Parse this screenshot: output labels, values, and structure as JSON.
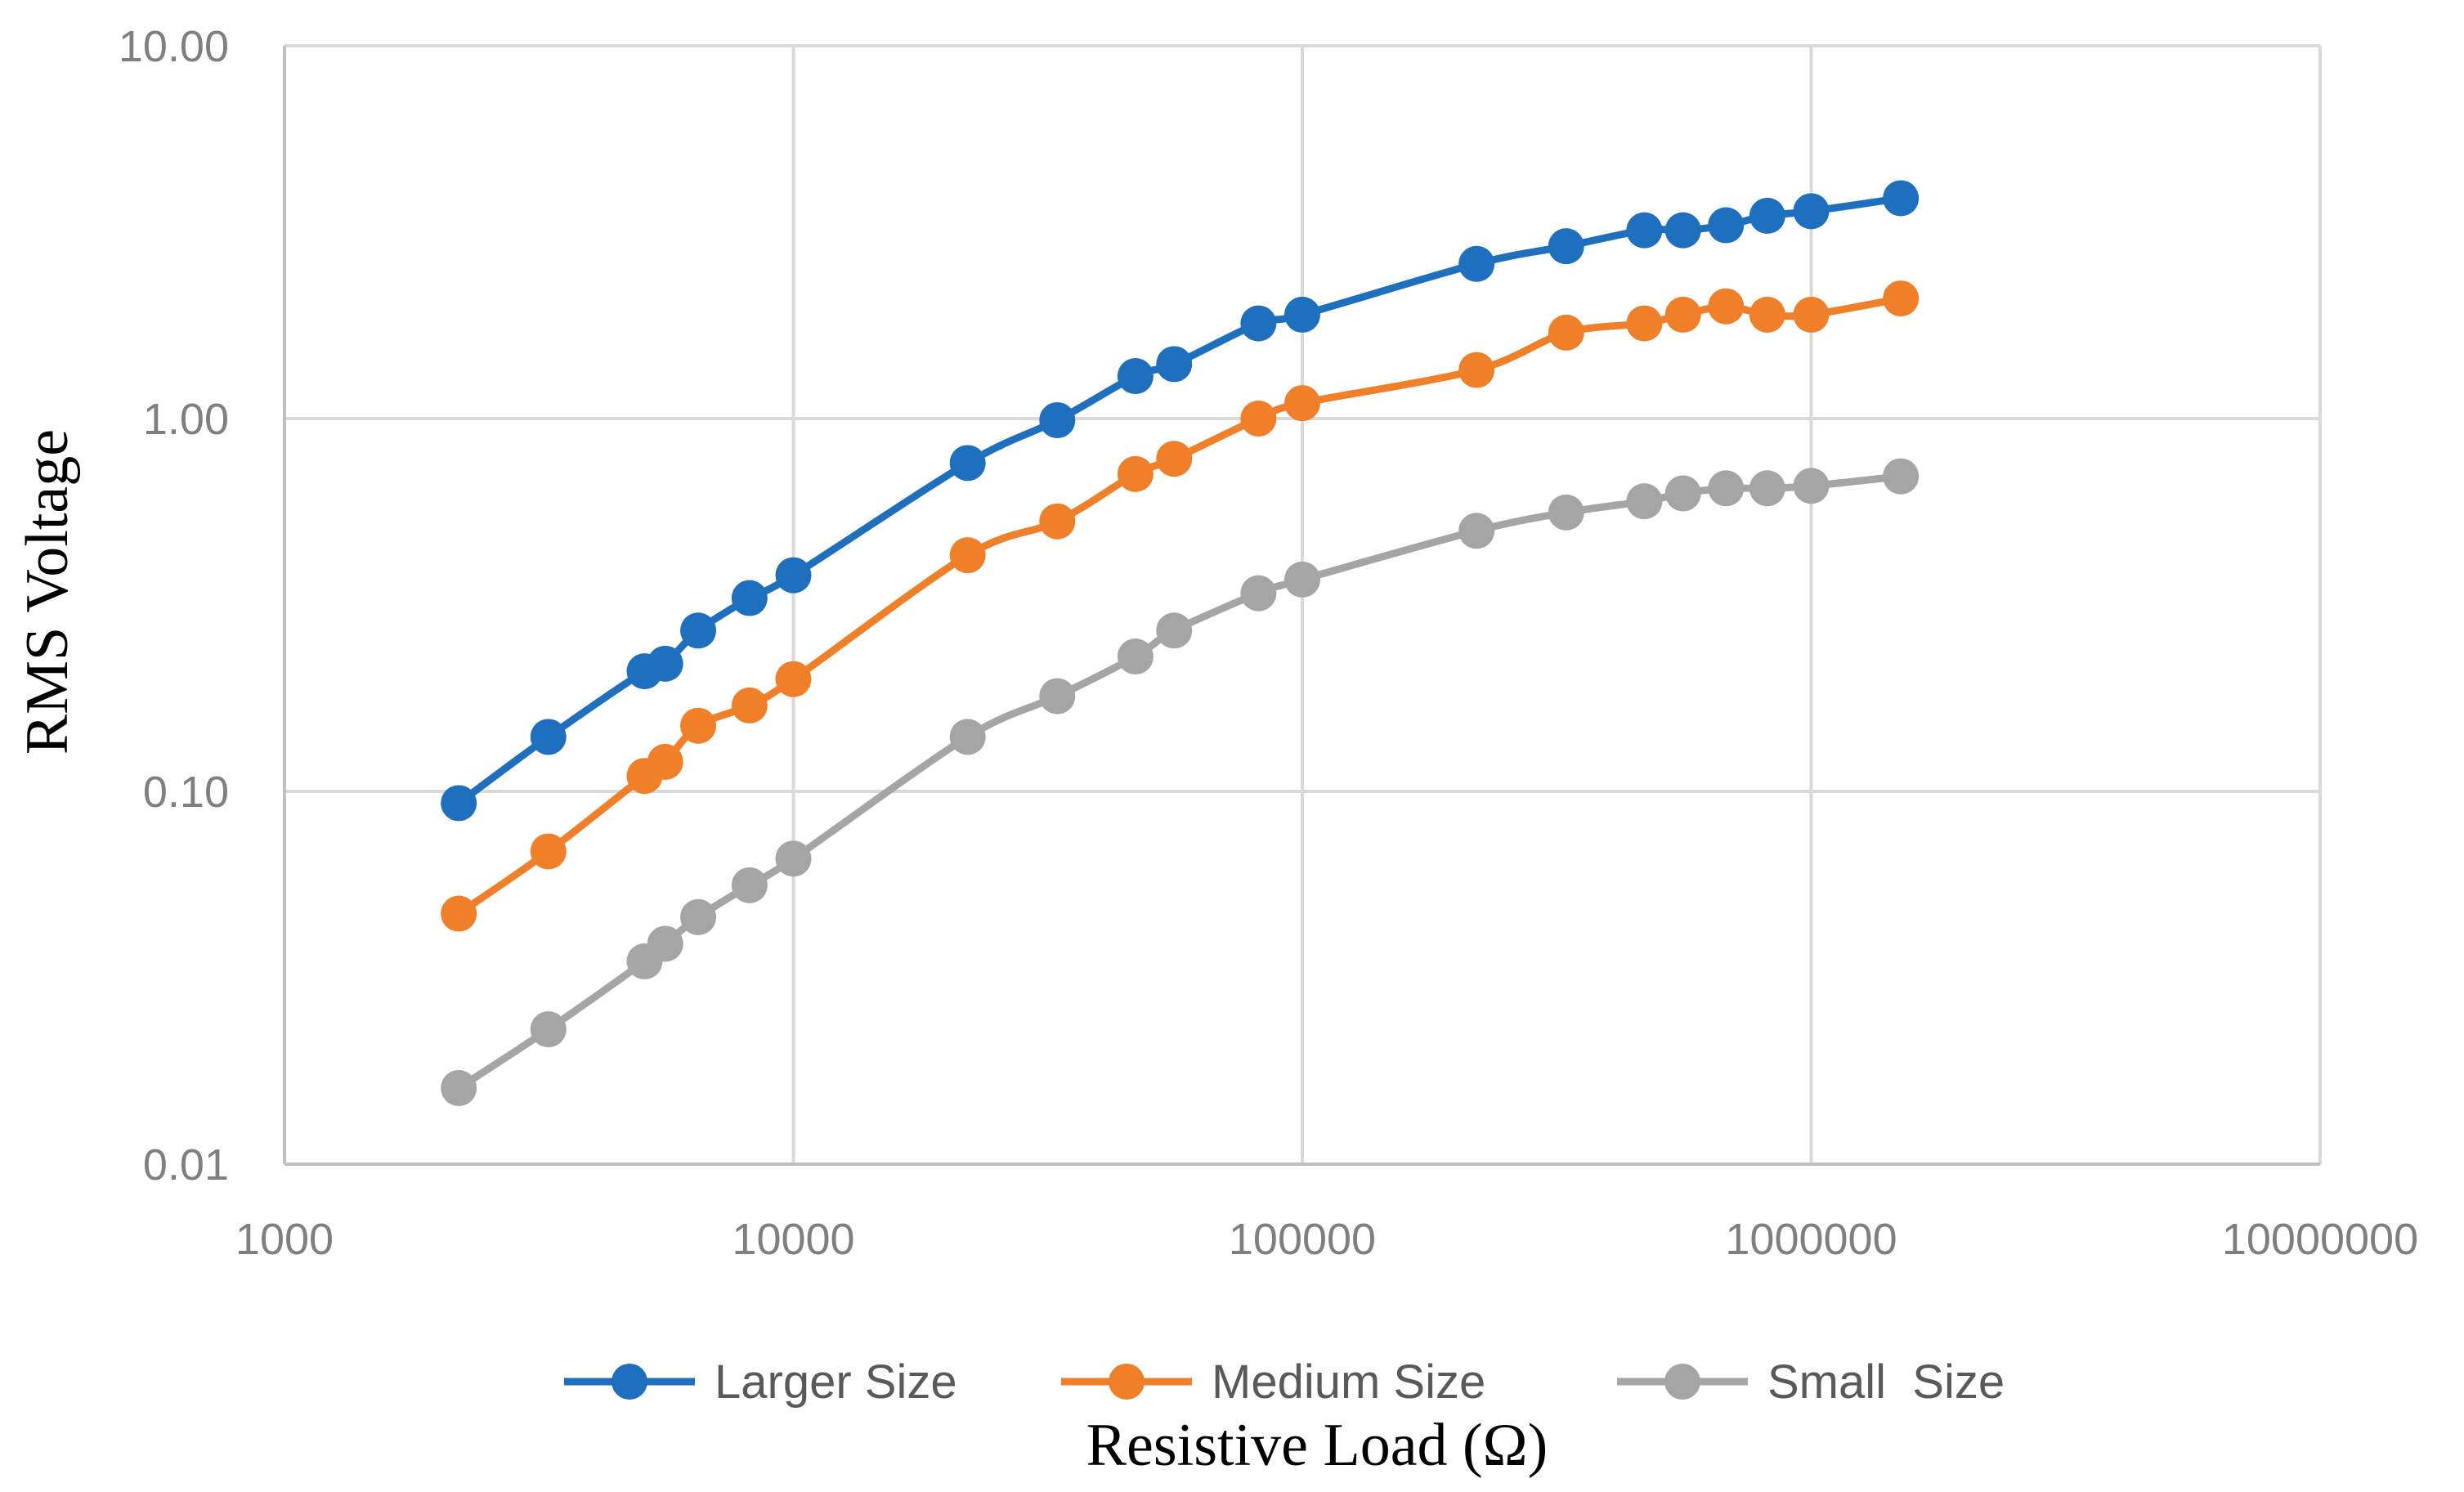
{
  "chart_data": {
    "type": "line",
    "title": "",
    "xlabel": "Resistive Load (Ω)",
    "ylabel": "RMS Voltage",
    "xscale": "log",
    "yscale": "log",
    "xlim": [
      1000,
      10000000
    ],
    "ylim": [
      0.01,
      10
    ],
    "grid": true,
    "legend_position": "bottom",
    "x_ticks": [
      1000,
      10000,
      100000,
      1000000,
      10000000
    ],
    "x_tick_labels": [
      "1000",
      "10000",
      "100000",
      "1000000",
      "10000000"
    ],
    "y_ticks": [
      0.01,
      0.1,
      1,
      10
    ],
    "y_tick_labels": [
      "0.01",
      "0.10",
      "1.00",
      "10.00"
    ],
    "x": [
      2200,
      3300,
      5100,
      5600,
      6500,
      8200,
      10000,
      22000,
      33000,
      47000,
      56000,
      82000,
      100000,
      220000,
      330000,
      470000,
      560000,
      680000,
      820000,
      1000000,
      1500000
    ],
    "series": [
      {
        "name": "Larger Size",
        "color": "#1f6fbf",
        "values": [
          0.093,
          0.14,
          0.21,
          0.22,
          0.27,
          0.33,
          0.38,
          0.76,
          0.99,
          1.3,
          1.4,
          1.8,
          1.9,
          2.6,
          2.9,
          3.2,
          3.2,
          3.3,
          3.5,
          3.6,
          3.9
        ]
      },
      {
        "name": "Medium Size",
        "color": "#f07f2a",
        "values": [
          0.047,
          0.069,
          0.11,
          0.12,
          0.15,
          0.17,
          0.2,
          0.43,
          0.53,
          0.71,
          0.78,
          1.0,
          1.1,
          1.35,
          1.7,
          1.8,
          1.9,
          2.0,
          1.9,
          1.9,
          2.1
        ]
      },
      {
        "name": "Small  Size",
        "color": "#a5a5a5",
        "values": [
          0.016,
          0.023,
          0.035,
          0.039,
          0.046,
          0.056,
          0.066,
          0.14,
          0.18,
          0.23,
          0.27,
          0.34,
          0.37,
          0.5,
          0.56,
          0.6,
          0.63,
          0.65,
          0.65,
          0.66,
          0.7
        ]
      }
    ]
  }
}
